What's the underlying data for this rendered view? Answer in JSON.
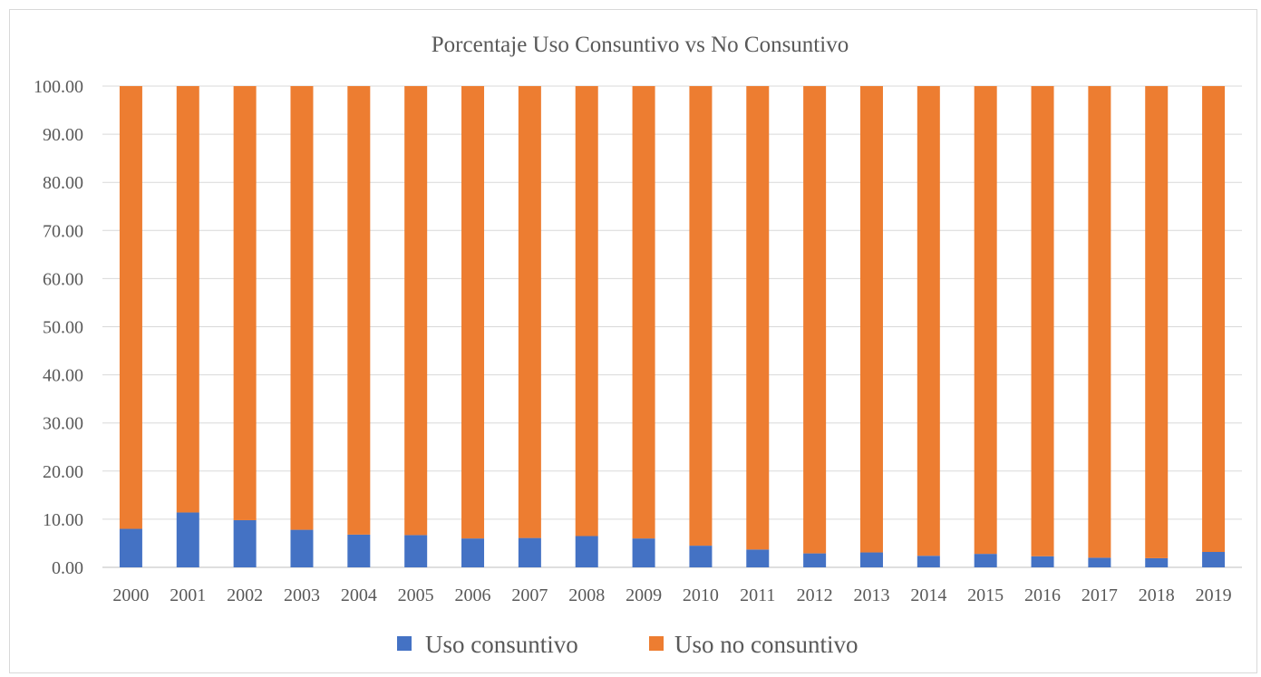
{
  "chart_data": {
    "type": "bar",
    "stacked": true,
    "title": "Porcentaje Uso Consuntivo vs No Consuntivo",
    "xlabel": "",
    "ylabel": "",
    "ylim": [
      0,
      100
    ],
    "ytick_step": 10,
    "ytick_labels": [
      "0.00",
      "10.00",
      "20.00",
      "30.00",
      "40.00",
      "50.00",
      "60.00",
      "70.00",
      "80.00",
      "90.00",
      "100.00"
    ],
    "grid": true,
    "legend_position": "bottom",
    "categories": [
      "2000",
      "2001",
      "2002",
      "2003",
      "2004",
      "2005",
      "2006",
      "2007",
      "2008",
      "2009",
      "2010",
      "2011",
      "2012",
      "2013",
      "2014",
      "2015",
      "2016",
      "2017",
      "2018",
      "2019"
    ],
    "series": [
      {
        "name": "Uso consuntivo",
        "color": "#4472c4",
        "values": [
          8.0,
          11.4,
          9.8,
          7.8,
          6.8,
          6.7,
          6.0,
          6.1,
          6.5,
          6.0,
          4.5,
          3.7,
          2.9,
          3.1,
          2.4,
          2.8,
          2.3,
          2.0,
          1.9,
          3.2
        ]
      },
      {
        "name": "Uso no consuntivo",
        "color": "#ed7d31",
        "values": [
          92.0,
          88.6,
          90.2,
          92.2,
          93.2,
          93.3,
          94.0,
          93.9,
          93.5,
          94.0,
          95.5,
          96.3,
          97.1,
          96.9,
          97.6,
          97.2,
          97.7,
          98.0,
          98.1,
          96.8
        ]
      }
    ]
  }
}
